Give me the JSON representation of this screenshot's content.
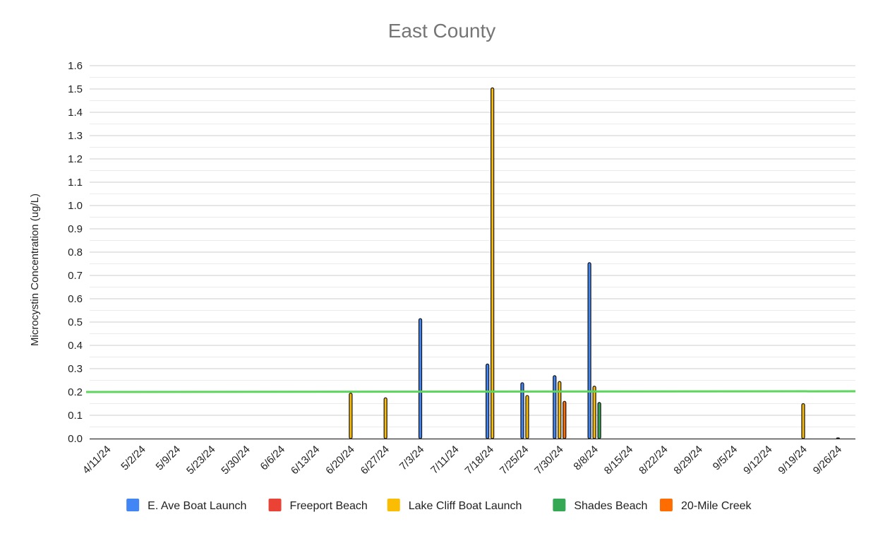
{
  "chart_data": {
    "type": "bar",
    "title": "East County",
    "xlabel": "",
    "ylabel": "Microcystin Concentration (ug/L)",
    "ylim": [
      0,
      1.6
    ],
    "yticks": [
      "0.0",
      "0.1",
      "0.2",
      "0.3",
      "0.4",
      "0.5",
      "0.6",
      "0.7",
      "0.8",
      "0.9",
      "1.0",
      "1.1",
      "1.2",
      "1.3",
      "1.4",
      "1.5",
      "1.6"
    ],
    "grid": true,
    "legend_position": "bottom",
    "categories": [
      "4/11/24",
      "5/2/24",
      "5/9/24",
      "5/23/24",
      "5/30/24",
      "6/6/24",
      "6/13/24",
      "6/20/24",
      "6/27/24",
      "7/3/24",
      "7/11/24",
      "7/18/24",
      "7/25/24",
      "7/30/24",
      "8/8/24",
      "8/15/24",
      "8/22/24",
      "8/29/24",
      "9/5/24",
      "9/12/24",
      "9/19/24",
      "9/26/24"
    ],
    "series": [
      {
        "name": "E. Ave Boat Launch",
        "color": "#4285f4",
        "values": [
          null,
          null,
          null,
          null,
          null,
          null,
          null,
          null,
          null,
          0.515,
          null,
          0.32,
          0.24,
          0.27,
          0.755,
          null,
          null,
          null,
          null,
          null,
          null,
          0.003
        ]
      },
      {
        "name": "Freeport Beach",
        "color": "#ea4335",
        "values": [
          null,
          null,
          null,
          null,
          null,
          null,
          null,
          null,
          null,
          null,
          null,
          null,
          null,
          null,
          null,
          null,
          null,
          null,
          null,
          null,
          null,
          null
        ]
      },
      {
        "name": "Lake Cliff Boat Launch",
        "color": "#fbbc04",
        "values": [
          null,
          null,
          null,
          null,
          null,
          null,
          null,
          0.195,
          0.175,
          null,
          null,
          1.505,
          0.185,
          0.245,
          0.225,
          null,
          null,
          null,
          null,
          null,
          0.15,
          null
        ]
      },
      {
        "name": "Shades Beach",
        "color": "#34a853",
        "values": [
          null,
          null,
          null,
          null,
          null,
          null,
          null,
          null,
          null,
          null,
          null,
          null,
          null,
          null,
          0.155,
          null,
          null,
          null,
          null,
          null,
          null,
          null
        ]
      },
      {
        "name": "20-Mile Creek",
        "color": "#ff6d01",
        "values": [
          null,
          null,
          null,
          null,
          null,
          null,
          null,
          null,
          null,
          null,
          null,
          null,
          null,
          0.16,
          null,
          null,
          null,
          null,
          null,
          null,
          null,
          null
        ]
      }
    ],
    "threshold": {
      "value": 0.2,
      "color": "#5cd65c"
    }
  }
}
